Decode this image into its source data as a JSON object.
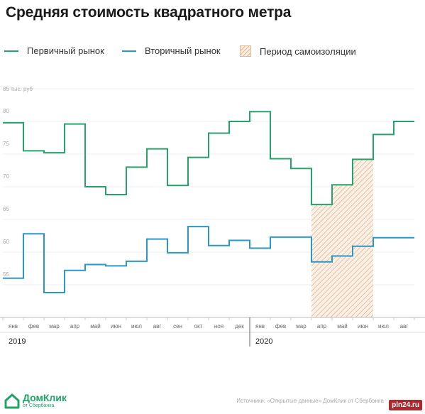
{
  "chart_data": {
    "type": "line",
    "step": true,
    "title": "Средняя стоимость квадратного метра",
    "y_unit_label": "85 тыс. руб",
    "yticks": [
      55,
      60,
      65,
      70,
      75,
      80
    ],
    "ylim": [
      50,
      85
    ],
    "grid": true,
    "legend_position": "top",
    "categories": [
      "янв",
      "фев",
      "мар",
      "апр",
      "май",
      "июн",
      "июл",
      "авг",
      "сен",
      "окт",
      "ноя",
      "дек",
      "янв",
      "фев",
      "мар",
      "апр",
      "май",
      "июн",
      "июл",
      "авг"
    ],
    "years": [
      {
        "label": "2019",
        "start_index": 0
      },
      {
        "label": "2020",
        "start_index": 12
      }
    ],
    "series": [
      {
        "name": "Первичный рынок",
        "color": "#26a36a",
        "values": [
          79.8,
          75.5,
          75.2,
          79.6,
          70.0,
          68.8,
          73.0,
          75.8,
          70.2,
          74.5,
          78.2,
          80.0,
          81.5,
          74.3,
          72.8,
          67.3,
          70.3,
          74.2,
          78.0,
          80.0
        ]
      },
      {
        "name": "Вторичный рынок",
        "color": "#2b97c4",
        "values": [
          56.0,
          62.8,
          53.8,
          57.2,
          58.1,
          57.9,
          58.6,
          62.0,
          59.9,
          63.9,
          61.0,
          61.8,
          60.6,
          62.3,
          62.3,
          58.5,
          59.4,
          60.9,
          62.2,
          62.2
        ]
      }
    ],
    "shaded_period": {
      "name": "Период самоизоляции",
      "color": "#e7b88f",
      "start_index": 15,
      "end_index": 18
    }
  },
  "source": "Источники: «Открытые данные» ДомКлик от Сбербанка",
  "logo": {
    "name": "ДомКлик",
    "sub": "от Сбербанка",
    "color": "#21a366"
  },
  "watermark": "pln24.ru"
}
